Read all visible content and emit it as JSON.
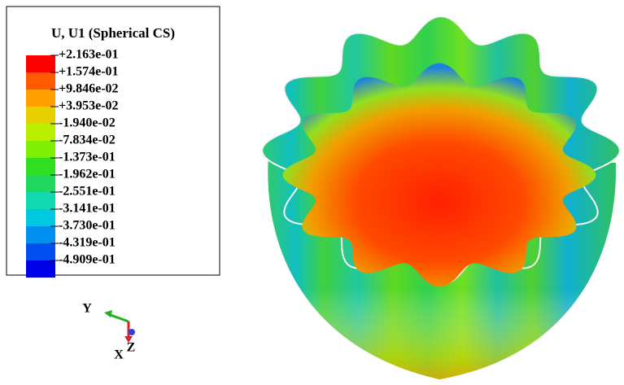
{
  "legend": {
    "title": "U, U1 (Spherical CS)",
    "labels": [
      "+2.163e-01",
      "+1.574e-01",
      "+9.846e-02",
      "+3.953e-02",
      "-1.940e-02",
      "-7.834e-02",
      "-1.373e-01",
      "-1.962e-01",
      "-2.551e-01",
      "-3.141e-01",
      "-3.730e-01",
      "-4.319e-01",
      "-4.909e-01"
    ],
    "colors": [
      "#ff0000",
      "#ff5a00",
      "#ffa000",
      "#e8d000",
      "#b8f000",
      "#7cf000",
      "#30e020",
      "#20d860",
      "#10d8b0",
      "#00c8e0",
      "#0090f0",
      "#0050f0",
      "#0000e8"
    ]
  },
  "triad": {
    "y": "Y",
    "x": "X",
    "z": "Z"
  }
}
